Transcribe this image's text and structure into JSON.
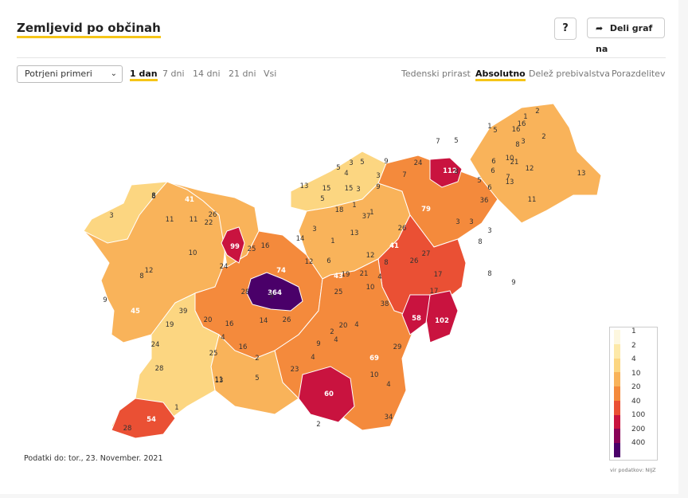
{
  "header": {
    "title": "Zemljevid po občinah",
    "help_label": "?",
    "share_label": "Deli graf na"
  },
  "controls": {
    "metric_select": "Potrjeni primeri",
    "period_tabs": [
      "1 dan",
      "7 dni",
      "14 dni",
      "21 dni",
      "Vsi"
    ],
    "period_active": "1 dan",
    "mode_tabs": [
      "Tedenski prirast",
      "Absolutno",
      "Delež prebivalstva",
      "Porazdelitev"
    ],
    "mode_active": "Absolutno"
  },
  "legend": {
    "labels": [
      "1",
      "2",
      "4",
      "10",
      "20",
      "40",
      "100",
      "200",
      "400"
    ],
    "colors": [
      "#fdf7df",
      "#fde9a9",
      "#fcd681",
      "#f9b35a",
      "#f48a3c",
      "#ea5034",
      "#c9133f",
      "#8a0257",
      "#4a0069"
    ]
  },
  "map": {
    "values": [
      "364",
      "112",
      "102",
      "99",
      "79",
      "74",
      "69",
      "60",
      "58",
      "54",
      "45",
      "43",
      "41",
      "41",
      "39",
      "38",
      "37",
      "36",
      "34",
      "29",
      "28",
      "28",
      "28",
      "27",
      "26",
      "26",
      "26",
      "26",
      "25",
      "25",
      "25",
      "24",
      "24",
      "24",
      "23",
      "22",
      "21",
      "21",
      "20",
      "20",
      "19",
      "19",
      "18",
      "17",
      "17",
      "16",
      "16",
      "16",
      "16",
      "16",
      "15",
      "15",
      "14",
      "14",
      "13",
      "13",
      "13",
      "13",
      "13",
      "12",
      "12",
      "12",
      "12",
      "11",
      "11",
      "11",
      "11",
      "10",
      "10",
      "10",
      "10",
      "9",
      "9",
      "9",
      "9",
      "9",
      "9",
      "8",
      "8",
      "8",
      "8",
      "8",
      "8",
      "8",
      "8",
      "7",
      "7",
      "7",
      "6",
      "6",
      "6",
      "6",
      "5",
      "5",
      "5",
      "5",
      "5",
      "5",
      "5",
      "4",
      "4",
      "4",
      "4",
      "4",
      "4",
      "4",
      "3",
      "3",
      "3",
      "3",
      "3",
      "3",
      "3",
      "3",
      "3",
      "2",
      "2",
      "2",
      "2",
      "2",
      "1",
      "1",
      "1",
      "1",
      "1",
      "1"
    ]
  },
  "footer": {
    "data_date": "Podatki do: tor., 23. November. 2021",
    "source": "vir podatkov: NIJZ"
  }
}
